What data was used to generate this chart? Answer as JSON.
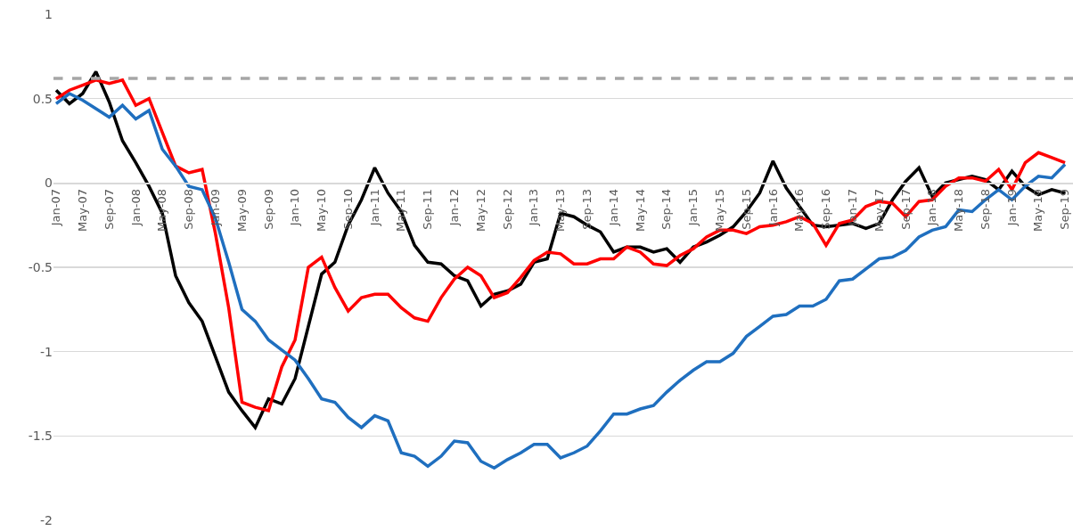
{
  "chart_data": {
    "type": "line",
    "categories": [
      "Jan-07",
      null,
      "May-07",
      null,
      "Sep-07",
      null,
      "Jan-08",
      null,
      "May-08",
      null,
      "Sep-08",
      null,
      "Jan-09",
      null,
      "May-09",
      null,
      "Sep-09",
      null,
      "Jan-10",
      null,
      "May-10",
      null,
      "Sep-10",
      null,
      "Jan-11",
      null,
      "May-11",
      null,
      "Sep-11",
      null,
      "Jan-12",
      null,
      "May-12",
      null,
      "Sep-12",
      null,
      "Jan-13",
      null,
      "May-13",
      null,
      "Sep-13",
      null,
      "Jan-14",
      null,
      "May-14",
      null,
      "Sep-14",
      null,
      "Jan-15",
      null,
      "May-15",
      null,
      "Sep-15",
      null,
      "Jan-16",
      null,
      "May-16",
      null,
      "Sep-16",
      null,
      "Jan-17",
      null,
      "May-17",
      null,
      "Sep-17",
      null,
      "Jan-18",
      null,
      "May-18",
      null,
      "Sep-18",
      null,
      "Jan-19",
      null,
      "May-19",
      null,
      "Sep-19"
    ],
    "series": [
      {
        "color": "#000000",
        "values": [
          0.55,
          0.47,
          0.53,
          0.66,
          0.48,
          0.25,
          0.12,
          -0.02,
          -0.18,
          -0.55,
          -0.71,
          -0.82,
          -1.03,
          -1.24,
          -1.35,
          -1.45,
          -1.28,
          -1.31,
          -1.16,
          -0.85,
          -0.54,
          -0.47,
          -0.25,
          -0.1,
          0.09,
          -0.06,
          -0.17,
          -0.37,
          -0.47,
          -0.48,
          -0.55,
          -0.58,
          -0.73,
          -0.66,
          -0.64,
          -0.6,
          -0.47,
          -0.45,
          -0.18,
          -0.2,
          -0.25,
          -0.29,
          -0.41,
          -0.38,
          -0.38,
          -0.41,
          -0.39,
          -0.47,
          -0.38,
          -0.35,
          -0.31,
          -0.26,
          -0.17,
          -0.06,
          0.13,
          -0.03,
          -0.14,
          -0.25,
          -0.26,
          -0.25,
          -0.24,
          -0.27,
          -0.24,
          -0.1,
          0.01,
          0.09,
          -0.08,
          0.0,
          0.02,
          0.04,
          0.02,
          -0.04,
          0.07,
          -0.02,
          -0.07,
          -0.04,
          -0.06
        ]
      },
      {
        "color": "#ff0000",
        "values": [
          0.5,
          0.55,
          0.58,
          0.61,
          0.59,
          0.61,
          0.46,
          0.5,
          0.3,
          0.1,
          0.06,
          0.08,
          -0.3,
          -0.74,
          -1.3,
          -1.33,
          -1.35,
          -1.09,
          -0.93,
          -0.5,
          -0.44,
          -0.62,
          -0.76,
          -0.68,
          -0.66,
          -0.66,
          -0.74,
          -0.8,
          -0.82,
          -0.68,
          -0.57,
          -0.5,
          -0.55,
          -0.68,
          -0.65,
          -0.56,
          -0.46,
          -0.41,
          -0.42,
          -0.48,
          -0.48,
          -0.45,
          -0.45,
          -0.38,
          -0.41,
          -0.48,
          -0.49,
          -0.43,
          -0.39,
          -0.32,
          -0.28,
          -0.28,
          -0.3,
          -0.26,
          -0.25,
          -0.23,
          -0.2,
          -0.24,
          -0.37,
          -0.24,
          -0.22,
          -0.14,
          -0.11,
          -0.12,
          -0.2,
          -0.11,
          -0.1,
          -0.02,
          0.03,
          0.03,
          0.01,
          0.08,
          -0.04,
          0.12,
          0.18,
          0.15,
          0.12
        ]
      },
      {
        "color": "#1f6fbf",
        "values": [
          0.47,
          0.53,
          0.49,
          0.44,
          0.39,
          0.46,
          0.38,
          0.43,
          0.2,
          0.1,
          -0.02,
          -0.04,
          -0.21,
          -0.47,
          -0.75,
          -0.82,
          -0.93,
          -0.99,
          -1.05,
          -1.16,
          -1.28,
          -1.3,
          -1.39,
          -1.45,
          -1.38,
          -1.41,
          -1.6,
          -1.62,
          -1.68,
          -1.62,
          -1.53,
          -1.54,
          -1.65,
          -1.69,
          -1.64,
          -1.6,
          -1.55,
          -1.55,
          -1.63,
          -1.6,
          -1.56,
          -1.47,
          -1.37,
          -1.37,
          -1.34,
          -1.32,
          -1.24,
          -1.17,
          -1.11,
          -1.06,
          -1.06,
          -1.01,
          -0.91,
          -0.85,
          -0.79,
          -0.78,
          -0.73,
          -0.73,
          -0.69,
          -0.58,
          -0.57,
          -0.51,
          -0.45,
          -0.44,
          -0.4,
          -0.32,
          -0.28,
          -0.26,
          -0.16,
          -0.17,
          -0.1,
          -0.04,
          -0.1,
          -0.02,
          0.04,
          0.03,
          0.11
        ]
      }
    ],
    "ylim": [
      -2,
      1
    ],
    "yticks": [
      -2,
      -1.5,
      -1,
      -0.5,
      0,
      0.5,
      1
    ],
    "grid": "y",
    "ref_lines": [
      {
        "axis": "y",
        "value": 0.62,
        "color": "#a6a6a6",
        "line_style": "dashed"
      }
    ],
    "line_style": "solid",
    "marker": "none"
  }
}
